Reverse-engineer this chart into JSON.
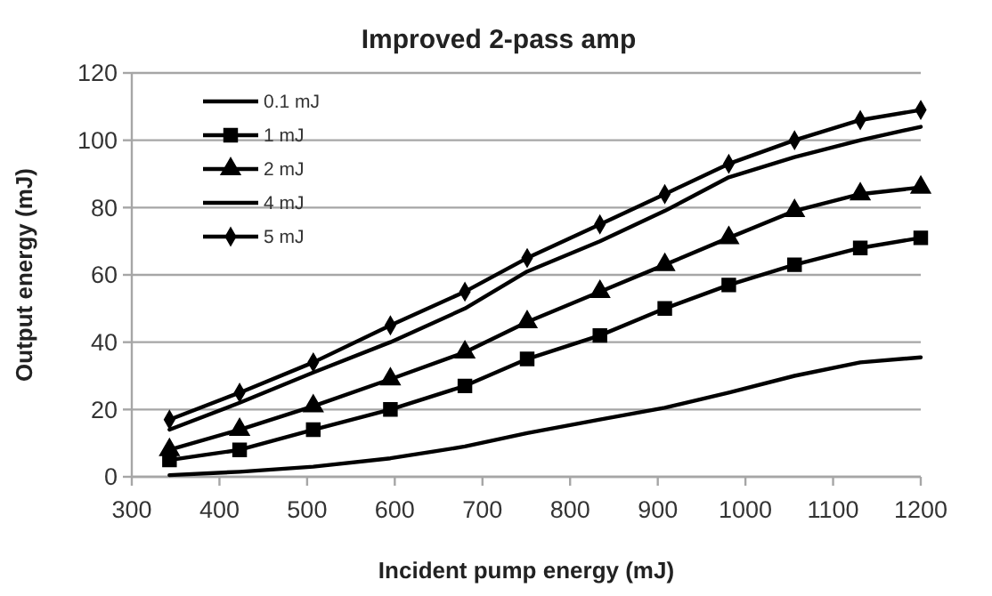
{
  "chart_data": {
    "type": "line",
    "title": "Improved 2-pass amp",
    "xlabel": "Incident pump energy (mJ)",
    "ylabel": "Output energy (mJ)",
    "x": [
      343,
      423,
      507,
      595,
      680,
      751,
      834,
      908,
      981,
      1056,
      1131,
      1200
    ],
    "series": [
      {
        "name": "0.1 mJ",
        "color": "#000000",
        "marker": "none",
        "values": [
          0.5,
          1.5,
          3,
          5.5,
          9,
          13,
          17,
          20.5,
          25,
          30,
          34,
          35.5
        ]
      },
      {
        "name": "1 mJ",
        "color": "#000000",
        "marker": "square",
        "values": [
          5,
          8,
          14,
          20,
          27,
          35,
          42,
          50,
          57,
          63,
          68,
          71
        ]
      },
      {
        "name": "2 mJ",
        "color": "#000000",
        "marker": "triangle",
        "values": [
          8,
          14,
          21,
          29,
          37,
          46,
          55,
          63,
          71,
          79,
          84,
          86
        ]
      },
      {
        "name": "4 mJ",
        "color": "#000000",
        "marker": "none",
        "values": [
          14,
          22,
          31,
          40,
          50,
          61,
          70,
          79,
          89,
          95,
          100,
          104
        ]
      },
      {
        "name": "5 mJ",
        "color": "#000000",
        "marker": "diamond",
        "values": [
          17,
          25,
          34,
          45,
          55,
          65,
          75,
          84,
          93,
          100,
          106,
          109
        ]
      }
    ],
    "xlim": [
      300,
      1200
    ],
    "ylim": [
      0,
      120
    ],
    "xticks": [
      300,
      400,
      500,
      600,
      700,
      800,
      900,
      1000,
      1100,
      1200
    ],
    "yticks": [
      0,
      20,
      40,
      60,
      80,
      100,
      120
    ],
    "grid": "y",
    "legend": "top left",
    "line_style": "solid"
  }
}
